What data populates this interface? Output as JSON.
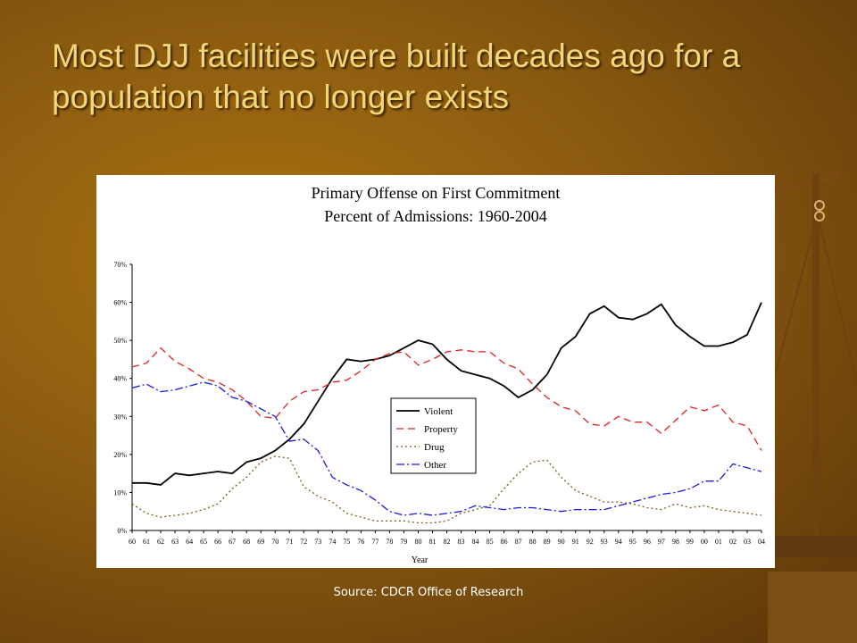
{
  "slide": {
    "title": "Most DJJ facilities were built decades ago for a population that no longer exists",
    "source": "Source: CDCR Office of Research"
  },
  "chart_data": {
    "type": "line",
    "title": "Primary Offense on First Commitment",
    "subtitle": "Percent of Admissions: 1960-2004",
    "xlabel": "Year",
    "ylabel": "",
    "ylim": [
      0,
      70
    ],
    "yticks": [
      "0%",
      "10%",
      "20%",
      "30%",
      "40%",
      "50%",
      "60%",
      "70%"
    ],
    "x": [
      "60",
      "61",
      "62",
      "63",
      "64",
      "65",
      "66",
      "67",
      "68",
      "69",
      "70",
      "71",
      "72",
      "73",
      "74",
      "75",
      "76",
      "77",
      "78",
      "79",
      "80",
      "81",
      "82",
      "83",
      "84",
      "85",
      "86",
      "87",
      "88",
      "89",
      "90",
      "91",
      "92",
      "93",
      "94",
      "95",
      "96",
      "97",
      "98",
      "99",
      "00",
      "01",
      "02",
      "03",
      "04"
    ],
    "legend_position": "center",
    "grid": false,
    "series": [
      {
        "name": "Violent",
        "color": "#000000",
        "dash": "",
        "values": [
          12.5,
          12.5,
          12,
          15,
          14.5,
          15,
          15.5,
          15,
          18,
          19,
          21,
          24,
          28,
          34,
          40,
          45,
          44.5,
          45,
          46,
          48,
          50,
          49,
          45,
          42,
          41,
          40,
          38,
          35,
          37,
          41,
          48,
          51,
          57,
          59,
          56,
          55.5,
          57,
          59.5,
          54,
          51,
          48.5,
          48.5,
          49.5,
          51.5,
          60
        ]
      },
      {
        "name": "Property",
        "color": "#e0201e",
        "dash": "8,5",
        "values": [
          43,
          44,
          48,
          44.5,
          42.5,
          40,
          39,
          37,
          34,
          30,
          29.5,
          34,
          36.5,
          37,
          39,
          39.5,
          42,
          45,
          46.5,
          47,
          43.5,
          45,
          47,
          47.5,
          47,
          47,
          44,
          42.5,
          38.5,
          35,
          32.5,
          31.5,
          28,
          27.5,
          30,
          28.5,
          28.5,
          25.5,
          29,
          32.5,
          31.5,
          33,
          28.5,
          27.5,
          21
        ]
      },
      {
        "name": "Drug",
        "color": "#7a5c14",
        "dash": "2,3",
        "values": [
          7,
          4.5,
          3.5,
          4,
          4.5,
          5.5,
          7,
          11,
          14,
          18,
          19.5,
          19,
          11.5,
          9,
          7.5,
          4.5,
          3.5,
          2.5,
          2.5,
          2.5,
          2,
          2,
          2.5,
          4.5,
          5.5,
          6.5,
          11,
          15,
          18,
          18.5,
          14,
          10.5,
          9,
          7.5,
          7.5,
          7,
          6,
          5.5,
          7,
          6,
          6.5,
          5.5,
          5,
          4.5,
          4
        ]
      },
      {
        "name": "Other",
        "color": "#1a1adc",
        "dash": "9,3,2,3",
        "values": [
          37.5,
          38.5,
          36.5,
          37,
          38,
          39,
          38,
          35,
          34,
          32,
          30,
          23.5,
          24,
          21,
          14,
          12,
          10.5,
          8,
          5,
          4,
          4.5,
          4,
          4.5,
          5,
          6.5,
          6,
          5.5,
          6,
          6,
          5.5,
          5,
          5.5,
          5.5,
          5.5,
          6.5,
          7.5,
          8.5,
          9.5,
          10,
          11,
          13,
          13,
          17.5,
          16.5,
          15.5
        ]
      }
    ]
  }
}
